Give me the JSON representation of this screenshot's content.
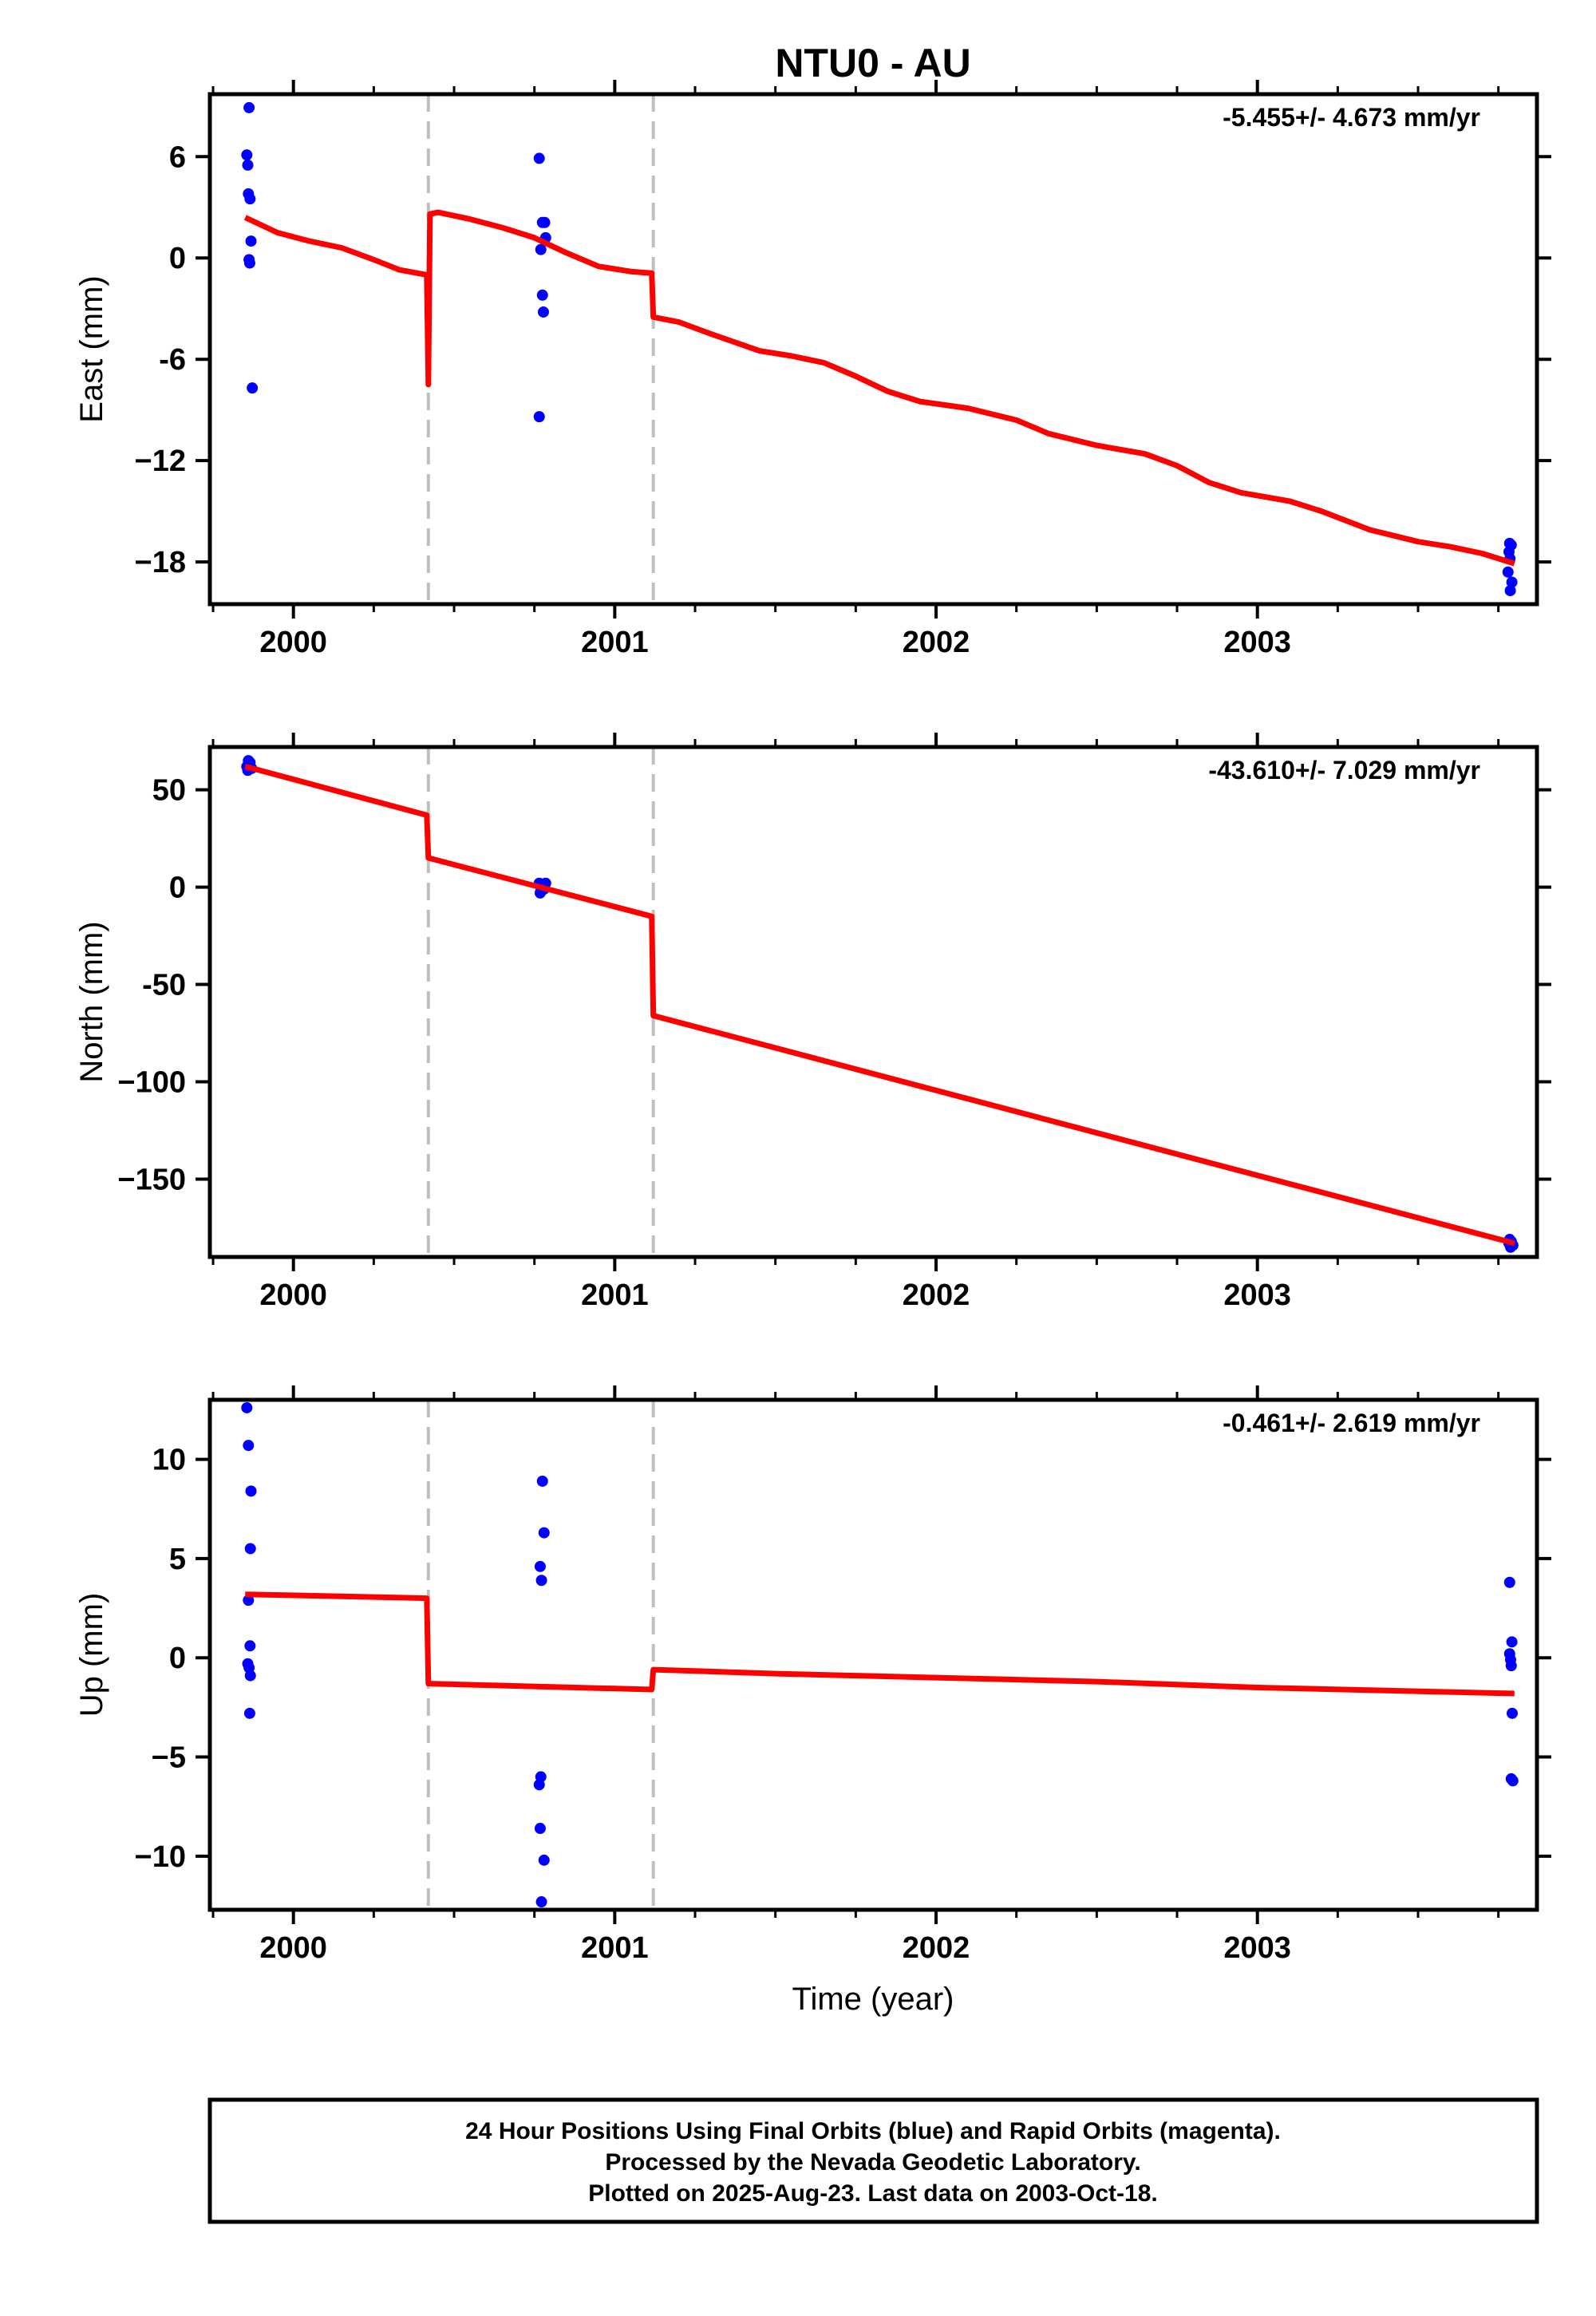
{
  "title": "NTU0 - AU",
  "chart_data": [
    {
      "type": "scatter",
      "component": "East",
      "ylabel": "East (mm)",
      "xlabel": "",
      "rate_label": "-5.455+/- 4.673 mm/yr",
      "xlim": [
        1999.74,
        2003.87
      ],
      "ylim": [
        -20.5,
        9.7
      ],
      "yticks": [
        6,
        0,
        -6,
        -12,
        -18
      ],
      "ytick_labels": [
        "6",
        "0",
        "-6",
        "−12",
        "−18"
      ],
      "xticks": [
        2000,
        2001,
        2002,
        2003
      ],
      "xtick_labels": [
        "2000",
        "2001",
        "2002",
        "2003"
      ],
      "breaks": [
        2000.42,
        2001.12
      ],
      "series": [
        {
          "color": "#0000ff",
          "kind": "points",
          "points": [
            [
              1999.862,
              8.9
            ],
            [
              1999.855,
              6.1
            ],
            [
              1999.858,
              5.5
            ],
            [
              1999.86,
              3.8
            ],
            [
              1999.865,
              3.5
            ],
            [
              1999.868,
              1.0
            ],
            [
              1999.862,
              -0.1
            ],
            [
              1999.864,
              -0.3
            ],
            [
              1999.872,
              -7.7
            ],
            [
              2000.765,
              5.9
            ],
            [
              2000.775,
              2.1
            ],
            [
              2000.782,
              2.1
            ],
            [
              2000.785,
              1.2
            ],
            [
              2000.77,
              0.5
            ],
            [
              2000.775,
              -2.2
            ],
            [
              2000.778,
              -3.2
            ],
            [
              2000.765,
              -9.4
            ],
            [
              2003.785,
              -16.9
            ],
            [
              2003.79,
              -17.0
            ],
            [
              2003.783,
              -17.4
            ],
            [
              2003.786,
              -17.8
            ],
            [
              2003.78,
              -18.6
            ],
            [
              2003.792,
              -19.2
            ],
            [
              2003.787,
              -19.7
            ]
          ]
        },
        {
          "color": "#ff0000",
          "kind": "line",
          "points": [
            [
              1999.85,
              2.4
            ],
            [
              1999.95,
              1.5
            ],
            [
              2000.05,
              1.0
            ],
            [
              2000.15,
              0.6
            ],
            [
              2000.25,
              -0.1
            ],
            [
              2000.33,
              -0.7
            ],
            [
              2000.415,
              -1.0
            ],
            [
              2000.42,
              -7.5
            ],
            [
              2000.425,
              2.6
            ],
            [
              2000.45,
              2.7
            ],
            [
              2000.55,
              2.3
            ],
            [
              2000.65,
              1.8
            ],
            [
              2000.75,
              1.2
            ],
            [
              2000.85,
              0.3
            ],
            [
              2000.95,
              -0.5
            ],
            [
              2001.05,
              -0.8
            ],
            [
              2001.115,
              -0.9
            ],
            [
              2001.12,
              -3.5
            ],
            [
              2001.2,
              -3.8
            ],
            [
              2001.3,
              -4.5
            ],
            [
              2001.45,
              -5.5
            ],
            [
              2001.55,
              -5.8
            ],
            [
              2001.65,
              -6.2
            ],
            [
              2001.75,
              -7.0
            ],
            [
              2001.85,
              -7.9
            ],
            [
              2001.95,
              -8.5
            ],
            [
              2002.1,
              -8.9
            ],
            [
              2002.25,
              -9.6
            ],
            [
              2002.35,
              -10.4
            ],
            [
              2002.5,
              -11.1
            ],
            [
              2002.65,
              -11.6
            ],
            [
              2002.75,
              -12.3
            ],
            [
              2002.85,
              -13.3
            ],
            [
              2002.95,
              -13.9
            ],
            [
              2003.1,
              -14.4
            ],
            [
              2003.2,
              -15.0
            ],
            [
              2003.35,
              -16.1
            ],
            [
              2003.5,
              -16.8
            ],
            [
              2003.6,
              -17.1
            ],
            [
              2003.7,
              -17.5
            ],
            [
              2003.8,
              -18.1
            ]
          ]
        }
      ]
    },
    {
      "type": "scatter",
      "component": "North",
      "ylabel": "North (mm)",
      "xlabel": "",
      "rate_label": "-43.610+/- 7.029 mm/yr",
      "xlim": [
        1999.74,
        2003.87
      ],
      "ylim": [
        -190,
        72
      ],
      "yticks": [
        50,
        0,
        -50,
        -100,
        -150
      ],
      "ytick_labels": [
        "50",
        "0",
        "-50",
        "−100",
        "−150"
      ],
      "xticks": [
        2000,
        2001,
        2002,
        2003
      ],
      "xtick_labels": [
        "2000",
        "2001",
        "2002",
        "2003"
      ],
      "breaks": [
        2000.42,
        2001.12
      ],
      "series": [
        {
          "color": "#0000ff",
          "kind": "points",
          "points": [
            [
              1999.86,
              65
            ],
            [
              1999.865,
              64
            ],
            [
              1999.855,
              62
            ],
            [
              1999.87,
              61
            ],
            [
              1999.858,
              60
            ],
            [
              1999.862,
              63
            ],
            [
              2000.765,
              2
            ],
            [
              2000.775,
              1
            ],
            [
              2000.78,
              -1
            ],
            [
              2000.77,
              -2
            ],
            [
              2000.768,
              -3
            ],
            [
              2000.785,
              2
            ],
            [
              2003.785,
              -181
            ],
            [
              2003.79,
              -182
            ],
            [
              2003.795,
              -184
            ],
            [
              2003.783,
              -183
            ],
            [
              2003.788,
              -185
            ]
          ]
        },
        {
          "color": "#ff0000",
          "kind": "line",
          "points": [
            [
              1999.85,
              62
            ],
            [
              2000.415,
              37
            ],
            [
              2000.42,
              15
            ],
            [
              2001.115,
              -15
            ],
            [
              2001.12,
              -66
            ],
            [
              2003.8,
              -183
            ]
          ]
        }
      ]
    },
    {
      "type": "scatter",
      "component": "Up",
      "ylabel": "Up (mm)",
      "xlabel": "Time (year)",
      "rate_label": "-0.461+/- 2.619 mm/yr",
      "xlim": [
        1999.74,
        2003.87
      ],
      "ylim": [
        -12.7,
        13.0
      ],
      "yticks": [
        10,
        5,
        0,
        -5,
        -10
      ],
      "ytick_labels": [
        "10",
        "5",
        "0",
        "−5",
        "−10"
      ],
      "xticks": [
        2000,
        2001,
        2002,
        2003
      ],
      "xtick_labels": [
        "2000",
        "2001",
        "2002",
        "2003"
      ],
      "breaks": [
        2000.42,
        2001.12
      ],
      "series": [
        {
          "color": "#0000ff",
          "kind": "points",
          "points": [
            [
              1999.855,
              12.6
            ],
            [
              1999.86,
              10.7
            ],
            [
              1999.868,
              8.4
            ],
            [
              1999.866,
              5.5
            ],
            [
              1999.86,
              2.9
            ],
            [
              1999.865,
              0.6
            ],
            [
              1999.858,
              -0.3
            ],
            [
              1999.862,
              -0.5
            ],
            [
              1999.866,
              -0.9
            ],
            [
              1999.864,
              -2.8
            ],
            [
              2000.775,
              8.9
            ],
            [
              2000.78,
              6.3
            ],
            [
              2000.768,
              4.6
            ],
            [
              2000.772,
              3.9
            ],
            [
              2000.77,
              -6.0
            ],
            [
              2000.765,
              -6.4
            ],
            [
              2000.768,
              -8.6
            ],
            [
              2000.78,
              -10.2
            ],
            [
              2000.772,
              -12.3
            ],
            [
              2003.785,
              3.8
            ],
            [
              2003.792,
              0.8
            ],
            [
              2003.785,
              0.2
            ],
            [
              2003.788,
              -0.1
            ],
            [
              2003.79,
              -0.4
            ],
            [
              2003.793,
              -2.8
            ],
            [
              2003.79,
              -6.1
            ],
            [
              2003.795,
              -6.2
            ]
          ]
        },
        {
          "color": "#ff0000",
          "kind": "line",
          "points": [
            [
              1999.85,
              3.2
            ],
            [
              2000.415,
              3.0
            ],
            [
              2000.42,
              -1.3
            ],
            [
              2001.115,
              -1.6
            ],
            [
              2001.12,
              -0.6
            ],
            [
              2001.5,
              -0.8
            ],
            [
              2002.0,
              -1.0
            ],
            [
              2002.5,
              -1.2
            ],
            [
              2003.0,
              -1.5
            ],
            [
              2003.8,
              -1.8
            ]
          ]
        }
      ]
    }
  ],
  "footer": {
    "line1": "24 Hour Positions Using Final Orbits (blue) and Rapid Orbits (magenta).",
    "line2": "Processed by the Nevada Geodetic Laboratory.",
    "line3": "Plotted on 2025-Aug-23. Last data on 2003-Oct-18."
  }
}
